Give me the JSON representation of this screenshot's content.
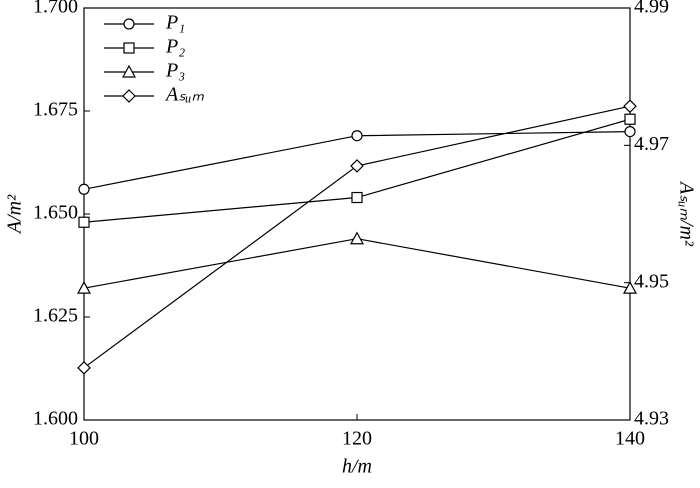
{
  "chart_data": {
    "type": "line",
    "x_label": "h/m",
    "y_label": "A/m²",
    "y2_label": "Aₛᵤₘ/m²",
    "x": [
      100,
      120,
      140
    ],
    "xlim": [
      100,
      140
    ],
    "xticks": [
      100,
      120,
      140
    ],
    "ylim": [
      1.6,
      1.7
    ],
    "yticks": [
      {
        "value": 1.6,
        "label": "1.600"
      },
      {
        "value": 1.625,
        "label": "1.625"
      },
      {
        "value": 1.65,
        "label": "1.650"
      },
      {
        "value": 1.675,
        "label": "1.675"
      },
      {
        "value": 1.7,
        "label": "1.700"
      }
    ],
    "y2lim": [
      4.93,
      4.99
    ],
    "y2ticks": [
      4.93,
      4.95,
      4.97,
      4.99
    ],
    "legend": "upper left",
    "series": [
      {
        "name": "P₁",
        "color": "#000000",
        "marker": "circle",
        "values": [
          1.656,
          1.669,
          1.67
        ]
      },
      {
        "name": "P₂",
        "color": "#000000",
        "marker": "square",
        "values": [
          1.648,
          1.654,
          1.673
        ]
      },
      {
        "name": "P₃",
        "color": "#000000",
        "marker": "triangle",
        "values": [
          1.632,
          1.644,
          1.632
        ]
      },
      {
        "name": "Aₛᵤₘ",
        "color": "#000000",
        "marker": "diamond",
        "axis": "y2",
        "values": [
          4.9376,
          4.967,
          4.9757
        ]
      }
    ]
  }
}
